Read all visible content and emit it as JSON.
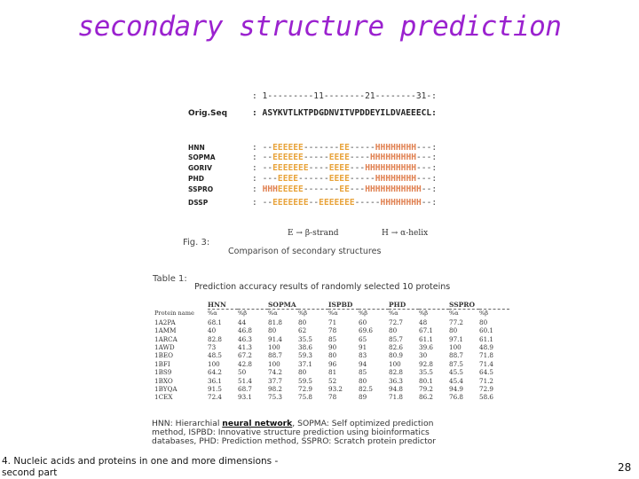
{
  "slide": {
    "title": "secondary structure prediction",
    "footer_left": "4. Nucleic acids and proteins in one and more dimensions - second part",
    "page_number": "28"
  },
  "figure3": {
    "position_ruler": ": 1---------11--------21--------31-:",
    "rows": [
      {
        "label": "Orig.Seq",
        "seq": ": ASYKVTLKTPDGDNVITVPDDEYILDVAEEECL:"
      },
      {
        "label": "HNN",
        "seq": ": --EEEEEE-------EE-----HHHHHHHH---:"
      },
      {
        "label": "SOPMA",
        "seq": ": --EEEEEE-----EEEE----HHHHHHHHH---:"
      },
      {
        "label": "GORIV",
        "seq": ": --EEEEEEE----EEEE---HHHHHHHHHH---:"
      },
      {
        "label": "PHD",
        "seq": ": ---EEEE------EEEE-----HHHHHHHH---:"
      },
      {
        "label": "SSPRO",
        "seq": ": HHHEEEEE-------EE---HHHHHHHHHHH--:"
      },
      {
        "label": "DSSP",
        "seq": ": --EEEEEEE--EEEEEEE-----HHHHHHHH--:"
      }
    ],
    "legend_e": "E → β-strand",
    "legend_h": "H → α-helix",
    "fig_label": "Fig. 3:",
    "caption": "Comparison of secondary structures"
  },
  "table1": {
    "label": "Table 1:",
    "caption": "Prediction accuracy results of randomly selected 10 proteins",
    "methods": [
      "HNN",
      "SOPMA",
      "ISPBD",
      "PHD",
      "SSPRO"
    ],
    "subheaders": [
      "Protein name",
      "%α",
      "%β",
      "%α",
      "%β",
      "%α",
      "%β",
      "%α",
      "%β",
      "%α",
      "%β"
    ],
    "rows": [
      [
        "1A2PA",
        "68.1",
        "44",
        "81.8",
        "80",
        "71",
        "60",
        "72.7",
        "48",
        "77.2",
        "80"
      ],
      [
        "1AMM",
        "40",
        "46.8",
        "80",
        "62",
        "78",
        "69.6",
        "80",
        "67.1",
        "80",
        "60.1"
      ],
      [
        "1ARCA",
        "82.8",
        "46.3",
        "91.4",
        "35.5",
        "85",
        "65",
        "85.7",
        "61.1",
        "97.1",
        "61.1"
      ],
      [
        "1AWD",
        "73",
        "41.3",
        "100",
        "38.6",
        "90",
        "91",
        "82.6",
        "39.6",
        "100",
        "48.9"
      ],
      [
        "1BEO",
        "48.5",
        "67.2",
        "88.7",
        "59.3",
        "80",
        "83",
        "80.9",
        "30",
        "88.7",
        "71.8"
      ],
      [
        "1BFI",
        "100",
        "42.8",
        "100",
        "37.1",
        "96",
        "94",
        "100",
        "92.8",
        "87.5",
        "71.4"
      ],
      [
        "1BS9",
        "64.2",
        "50",
        "74.2",
        "80",
        "81",
        "85",
        "82.8",
        "35.5",
        "45.5",
        "64.5"
      ],
      [
        "1BXO",
        "36.1",
        "51.4",
        "37.7",
        "59.5",
        "52",
        "80",
        "36.3",
        "80.1",
        "45.4",
        "71.2"
      ],
      [
        "1BYQA",
        "91.5",
        "68.7",
        "98.2",
        "72.9",
        "93.2",
        "82.5",
        "94.8",
        "79.2",
        "94.9",
        "72.9"
      ],
      [
        "1CEX",
        "72.4",
        "93.1",
        "75.3",
        "75.8",
        "78",
        "89",
        "71.8",
        "86.2",
        "76.8",
        "58.6"
      ]
    ],
    "footnote_prefix": "HNN: Hierarchial ",
    "footnote_link": "neural network",
    "footnote_rest": ", SOPMA: Self optimized prediction method, ISPBD: Innovative structure prediction using bioinformatics databases, PHD: Prediction method, SSPRO: Scratch protein predictor"
  }
}
